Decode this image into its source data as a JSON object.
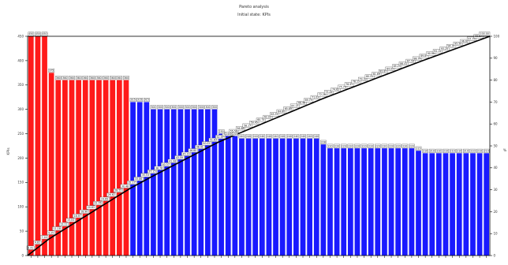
{
  "chart_data": {
    "type": "bar",
    "title": "Pareto analysis",
    "subtitle": "Initial state: KPIs",
    "ylabel": "KPIs",
    "y2label": "%",
    "ylim": [
      0,
      450
    ],
    "y2lim": [
      0,
      100
    ],
    "yticks": [
      0,
      50,
      100,
      150,
      200,
      250,
      300,
      350,
      400,
      450
    ],
    "y2ticks": [
      0,
      10,
      20,
      30,
      40,
      50,
      60,
      70,
      80,
      90,
      100
    ],
    "grid": false,
    "colors": {
      "vital_few": "#ff1a1a",
      "useful_many": "#1a1aff",
      "cumulative_line": "#000000"
    },
    "vital_few_count": 15,
    "values": [
      450,
      450,
      450,
      375,
      360,
      360,
      360,
      360,
      360,
      360,
      360,
      360,
      360,
      360,
      360,
      315,
      315,
      315,
      300,
      300,
      300,
      300,
      300,
      300,
      300,
      300,
      300,
      300,
      250,
      245,
      245,
      240,
      240,
      240,
      240,
      240,
      240,
      240,
      240,
      240,
      240,
      240,
      240,
      228,
      220,
      220,
      220,
      220,
      220,
      220,
      220,
      220,
      220,
      220,
      220,
      220,
      220,
      215,
      210,
      210,
      210,
      210,
      210,
      210,
      210,
      210,
      210,
      210
    ],
    "value_labels": [
      "450",
      "450",
      "450",
      "375",
      "360",
      "360",
      "360",
      "360",
      "360",
      "360",
      "360",
      "360",
      "360",
      "360",
      "360",
      "315",
      "315",
      "315",
      "300",
      "300",
      "300",
      "300",
      "300",
      "300",
      "300",
      "300",
      "300",
      "300",
      "250",
      "245",
      "245",
      "240",
      "240",
      "240",
      "240",
      "240",
      "240",
      "240",
      "240",
      "240",
      "240",
      "240",
      "240",
      "228",
      "220",
      "220",
      "220",
      "220",
      "220",
      "220",
      "220",
      "220",
      "220",
      "220",
      "220",
      "220",
      "220",
      "215",
      "210",
      "210",
      "210",
      "210",
      "210",
      "210",
      "210",
      "210",
      "210",
      "210"
    ]
  }
}
